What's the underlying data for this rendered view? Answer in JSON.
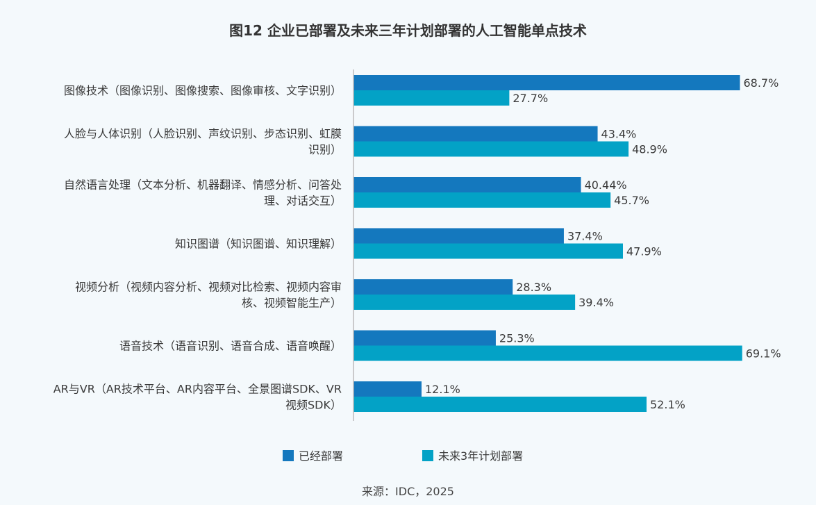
{
  "title": "图12  企业已部署及未来三年计划部署的人工智能单点技术",
  "source": "来源：IDC，2025",
  "colors": {
    "deployed": "#1478be",
    "planned": "#03a2c6",
    "axis": "#bbbbbb",
    "background": "#f4f9fc"
  },
  "chart_data": {
    "type": "bar",
    "orientation": "horizontal",
    "title": "图12  企业已部署及未来三年计划部署的人工智能单点技术",
    "categories": [
      [
        "图像技术（图像识别、图像搜索、图像审核、文字识别）"
      ],
      [
        "人脸与人体识别（人脸识别、声纹识别、步态识别、虹膜",
        "识别）"
      ],
      [
        "自然语言处理（文本分析、机器翻译、情感分析、问答处",
        "理、对话交互）"
      ],
      [
        "知识图谱（知识图谱、知识理解）"
      ],
      [
        "视频分析（视频内容分析、视频对比检索、视频内容审",
        "核、视频智能生产）"
      ],
      [
        "语音技术（语音识别、语音合成、语音唤醒）"
      ],
      [
        "AR与VR（AR技术平台、AR内容平台、全景图谱SDK、VR",
        "视频SDK）"
      ]
    ],
    "series": [
      {
        "name": "已经部署",
        "values": [
          68.7,
          43.4,
          40.44,
          37.4,
          28.3,
          25.3,
          12.1
        ],
        "labels": [
          "68.7%",
          "43.4%",
          "40.44%",
          "37.4%",
          "28.3%",
          "25.3%",
          "12.1%"
        ]
      },
      {
        "name": "未来3年计划部署",
        "values": [
          27.7,
          48.9,
          45.7,
          47.9,
          39.4,
          69.1,
          52.1
        ],
        "labels": [
          "27.7%",
          "48.9%",
          "45.7%",
          "47.9%",
          "39.4%",
          "69.1%",
          "52.1%"
        ]
      }
    ],
    "xlim": [
      0,
      100
    ],
    "grid": false,
    "legend": "bottom"
  }
}
